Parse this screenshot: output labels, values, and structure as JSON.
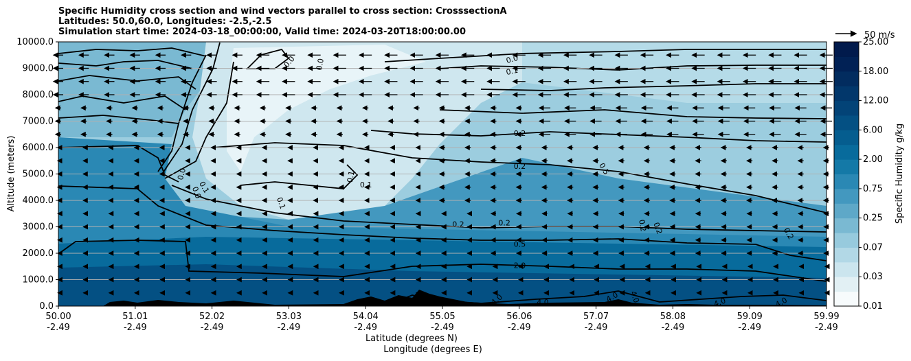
{
  "title_lines": [
    "Specific Humidity cross section and wind vectors parallel to cross section: CrosssectionA",
    "Latitudes: 50.0,60.0, Longitudes: -2.5,-2.5",
    "Simulation start time: 2024-03-18_00:00:00, Valid time: 2024-03-20T18:00:00.00"
  ],
  "chart_data": {
    "type": "heatmap",
    "ylabel": "Altitude (meters)",
    "xlabel_lines": [
      "Latitude (degrees N)",
      "Longitude (degrees E)"
    ],
    "ylim": [
      0,
      10000
    ],
    "y_ticks": [
      0,
      1000,
      2000,
      3000,
      4000,
      5000,
      6000,
      7000,
      8000,
      9000,
      10000
    ],
    "y_tick_labels": [
      "0.0",
      "1000.0",
      "2000.0",
      "3000.0",
      "4000.0",
      "5000.0",
      "6000.0",
      "7000.0",
      "8000.0",
      "9000.0",
      "10000.0"
    ],
    "x_tick_lat": [
      "50.00",
      "51.01",
      "52.02",
      "53.03",
      "54.04",
      "55.05",
      "56.06",
      "57.07",
      "58.08",
      "59.09",
      "59.99"
    ],
    "x_tick_lon": [
      "-2.49",
      "-2.49",
      "-2.49",
      "-2.49",
      "-2.49",
      "-2.49",
      "-2.49",
      "-2.49",
      "-2.49",
      "-2.49",
      "-2.49"
    ],
    "grid": "horizontal",
    "colorbar": {
      "label": "Specific Humidity g/kg",
      "levels": [
        0.01,
        0.03,
        0.07,
        0.25,
        0.75,
        2.0,
        6.0,
        12.0,
        18.0,
        25.0
      ],
      "tick_labels": [
        "0.01",
        "0.03",
        "0.07",
        "0.25",
        "0.75",
        "2.00",
        "6.00",
        "12.00",
        "18.00",
        "25.00"
      ],
      "colors": [
        "#f7fbfc",
        "#e2f0f4",
        "#cbe5ee",
        "#b2d8e6",
        "#97cadd",
        "#7ab9d2",
        "#5ea8c8",
        "#4398bf",
        "#2a88b4",
        "#1479a7",
        "#086b9c",
        "#055d8f",
        "#045083",
        "#034377",
        "#02376b",
        "#022c5f",
        "#012155",
        "#011a4c"
      ]
    },
    "contour_labels": [
      {
        "text": "0.0",
        "lat": 53.0,
        "alt": 9250,
        "rot": -50
      },
      {
        "text": "0.0",
        "lat": 53.4,
        "alt": 9150,
        "rot": -80
      },
      {
        "text": "0.0",
        "lat": 55.9,
        "alt": 9350,
        "rot": -15
      },
      {
        "text": "0.1",
        "lat": 55.9,
        "alt": 8900,
        "rot": -12
      },
      {
        "text": "0.2",
        "lat": 56.0,
        "alt": 6550,
        "rot": 0
      },
      {
        "text": "0.2",
        "lat": 56.0,
        "alt": 5300,
        "rot": 0
      },
      {
        "text": "0.5",
        "lat": 57.1,
        "alt": 5200,
        "rot": 60
      },
      {
        "text": "0.1",
        "lat": 53.8,
        "alt": 4900,
        "rot": -80
      },
      {
        "text": "0.1",
        "lat": 54.0,
        "alt": 4600,
        "rot": 0
      },
      {
        "text": "0.0",
        "lat": 51.6,
        "alt": 5000,
        "rot": -75
      },
      {
        "text": "0.1",
        "lat": 51.9,
        "alt": 4500,
        "rot": 60
      },
      {
        "text": "0.0",
        "lat": 51.8,
        "alt": 4300,
        "rot": 70
      },
      {
        "text": "0.1",
        "lat": 52.9,
        "alt": 3900,
        "rot": 70
      },
      {
        "text": "0.2",
        "lat": 55.8,
        "alt": 3150,
        "rot": 0
      },
      {
        "text": "0.2",
        "lat": 55.2,
        "alt": 3100,
        "rot": 0
      },
      {
        "text": "0.2",
        "lat": 57.6,
        "alt": 3050,
        "rot": 80
      },
      {
        "text": "0.2",
        "lat": 57.8,
        "alt": 2950,
        "rot": 70
      },
      {
        "text": "0.2",
        "lat": 59.5,
        "alt": 2750,
        "rot": 60
      },
      {
        "text": "0.5",
        "lat": 56.0,
        "alt": 2350,
        "rot": 0
      },
      {
        "text": "2.0",
        "lat": 56.0,
        "alt": 1550,
        "rot": 0
      },
      {
        "text": "4.0",
        "lat": 55.7,
        "alt": 250,
        "rot": -40
      },
      {
        "text": "4.0",
        "lat": 56.3,
        "alt": 150,
        "rot": 0
      },
      {
        "text": "4.0",
        "lat": 57.2,
        "alt": 350,
        "rot": -30
      },
      {
        "text": "4.0",
        "lat": 57.5,
        "alt": 350,
        "rot": 70
      },
      {
        "text": "4.0",
        "lat": 58.6,
        "alt": 150,
        "rot": -20
      },
      {
        "text": "4.0",
        "lat": 59.4,
        "alt": 150,
        "rot": -30
      }
    ],
    "wind_reference": {
      "value": 50,
      "label": "50 m/s"
    }
  }
}
